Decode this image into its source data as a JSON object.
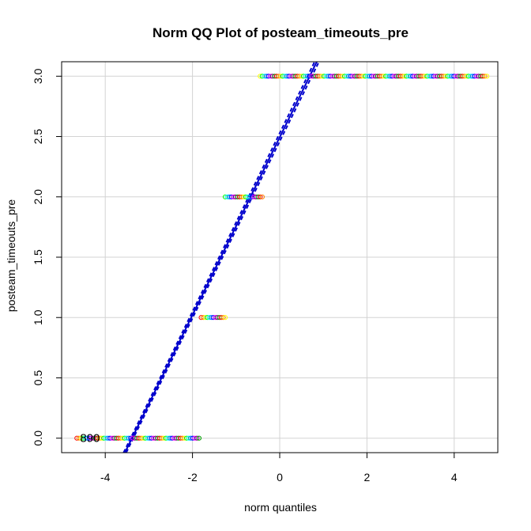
{
  "chart_data": {
    "type": "scatter",
    "title": "Norm QQ Plot of posteam_timeouts_pre",
    "xlabel": "norm quantiles",
    "ylabel": "posteam_timeouts_pre",
    "xlim": [
      -5.0,
      5.0
    ],
    "ylim": [
      -0.12,
      3.12
    ],
    "x_ticks": [
      "-4",
      "-2",
      "0",
      "2",
      "4"
    ],
    "y_ticks": [
      "0.0",
      "0.5",
      "1.0",
      "1.5",
      "2.0",
      "2.5",
      "3.0"
    ],
    "grid": true,
    "point_colors": [
      "#ff0000",
      "#ff8000",
      "#ffff00",
      "#00ff00",
      "#00ffff",
      "#0080ff",
      "#0000ff",
      "#ff00ff",
      "#800080",
      "#00a000"
    ],
    "line_color": "#0000cc",
    "groups": [
      {
        "y": 0.0,
        "x_min": -4.65,
        "x_max": -1.85
      },
      {
        "y": 1.0,
        "x_min": -1.8,
        "x_max": -1.25
      },
      {
        "y": 2.0,
        "x_min": -1.25,
        "x_max": -0.4
      },
      {
        "y": 3.0,
        "x_min": -0.45,
        "x_max": 4.75
      }
    ],
    "outlier_labels": [
      {
        "text": "890",
        "x": -4.35,
        "y": 0.0
      }
    ],
    "reference_line": {
      "x1": -3.55,
      "y1": -0.12,
      "x2": 0.85,
      "y2": 3.12
    },
    "confidence_band": {
      "lower": {
        "x1": -3.58,
        "y1": -0.12,
        "x2": 0.8,
        "y2": 3.12
      },
      "upper": {
        "x1": -3.52,
        "y1": -0.12,
        "x2": 0.9,
        "y2": 3.12
      }
    }
  }
}
